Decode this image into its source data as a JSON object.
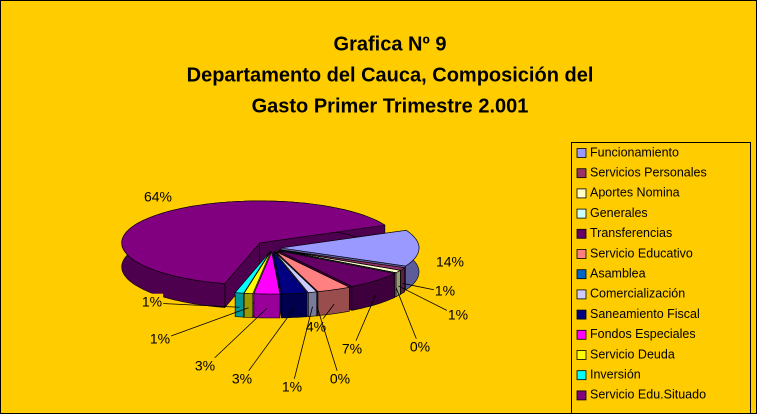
{
  "chart_data": {
    "type": "pie3d",
    "title": [
      "Grafica Nº 9",
      "Departamento del Cauca, Composición del",
      "Gasto Primer Trimestre 2.001"
    ],
    "categories": [
      "Funcionamiento",
      "Servicios Personales",
      "Aportes Nomina",
      "Generales",
      "Transferencias",
      "Servicio Educativo",
      "Asamblea",
      "Comercialización",
      "Saneamiento Fiscal",
      "Fondos Especiales",
      "Servicio Deuda",
      "Inversión",
      "Servicio Edu.Situado"
    ],
    "values": [
      14,
      1,
      1,
      0,
      7,
      4,
      0,
      1,
      3,
      3,
      1,
      1,
      64
    ],
    "value_labels": [
      "14%",
      "1%",
      "1%",
      "0%",
      "7%",
      "4%",
      "0%",
      "1%",
      "3%",
      "3%",
      "1%",
      "1%",
      "64%"
    ],
    "colors": [
      "#9999ff",
      "#993366",
      "#ffffcc",
      "#ccffff",
      "#660066",
      "#ff8080",
      "#0066cc",
      "#ccccff",
      "#000080",
      "#ff00ff",
      "#ffff00",
      "#00ffff",
      "#800080"
    ],
    "legend": "right"
  }
}
